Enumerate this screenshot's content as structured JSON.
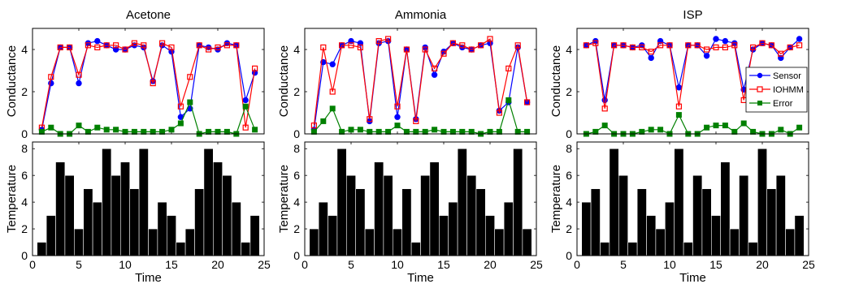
{
  "chart_data": [
    {
      "type": "line",
      "title": "Acetone",
      "xlabel": "",
      "ylabel": "Conductance",
      "xlim": [
        0,
        25
      ],
      "ylim": [
        0,
        5
      ],
      "x_ticks": [
        0,
        5,
        10,
        15,
        20,
        25
      ],
      "y_ticks": [
        0,
        2,
        4
      ],
      "x": [
        1,
        2,
        3,
        4,
        5,
        6,
        7,
        8,
        9,
        10,
        11,
        12,
        13,
        14,
        15,
        16,
        17,
        18,
        19,
        20,
        21,
        22,
        23,
        24
      ],
      "series": [
        {
          "name": "Sensor",
          "color": "#0000ff",
          "marker": "filled-circle",
          "values": [
            0.2,
            2.4,
            4.1,
            4.1,
            2.4,
            4.3,
            4.4,
            4.2,
            4.0,
            4.0,
            4.2,
            4.1,
            2.5,
            4.2,
            3.9,
            0.8,
            1.2,
            4.2,
            4.1,
            4.0,
            4.3,
            4.2,
            1.6,
            2.9
          ]
        },
        {
          "name": "IOHMM",
          "color": "#ff0000",
          "marker": "open-square",
          "values": [
            0.3,
            2.7,
            4.1,
            4.1,
            2.8,
            4.2,
            4.1,
            4.2,
            4.2,
            4.0,
            4.3,
            4.2,
            2.4,
            4.3,
            4.1,
            1.3,
            2.7,
            4.2,
            4.0,
            4.1,
            4.2,
            4.2,
            0.3,
            3.1
          ]
        },
        {
          "name": "Error",
          "color": "#008000",
          "marker": "filled-square",
          "values": [
            0.1,
            0.3,
            0.0,
            0.0,
            0.4,
            0.1,
            0.3,
            0.2,
            0.2,
            0.1,
            0.1,
            0.1,
            0.1,
            0.1,
            0.2,
            0.5,
            1.5,
            0.0,
            0.1,
            0.1,
            0.1,
            0.0,
            1.3,
            0.2
          ]
        }
      ]
    },
    {
      "type": "line",
      "title": "Ammonia",
      "xlabel": "",
      "ylabel": "Conductance",
      "xlim": [
        0,
        25
      ],
      "ylim": [
        0,
        5
      ],
      "x_ticks": [
        0,
        5,
        10,
        15,
        20,
        25
      ],
      "y_ticks": [
        0,
        2,
        4
      ],
      "x": [
        1,
        2,
        3,
        4,
        5,
        6,
        7,
        8,
        9,
        10,
        11,
        12,
        13,
        14,
        15,
        16,
        17,
        18,
        19,
        20,
        21,
        22,
        23,
        24
      ],
      "series": [
        {
          "name": "Sensor",
          "color": "#0000ff",
          "marker": "filled-circle",
          "values": [
            0.2,
            3.4,
            3.3,
            4.2,
            4.4,
            4.3,
            0.6,
            4.3,
            4.4,
            0.8,
            4.0,
            0.7,
            4.1,
            2.8,
            3.9,
            4.3,
            4.1,
            4.0,
            4.2,
            4.3,
            1.1,
            1.5,
            4.1,
            1.5
          ]
        },
        {
          "name": "IOHMM",
          "color": "#ff0000",
          "marker": "open-square",
          "values": [
            0.4,
            4.1,
            2.0,
            4.2,
            4.2,
            4.1,
            0.7,
            4.4,
            4.5,
            1.3,
            4.0,
            0.6,
            4.0,
            3.1,
            3.8,
            4.3,
            4.2,
            4.0,
            4.2,
            4.5,
            1.0,
            3.1,
            4.2,
            1.5
          ]
        },
        {
          "name": "Error",
          "color": "#008000",
          "marker": "filled-square",
          "values": [
            0.1,
            0.6,
            1.2,
            0.1,
            0.2,
            0.2,
            0.1,
            0.1,
            0.1,
            0.4,
            0.1,
            0.1,
            0.1,
            0.2,
            0.1,
            0.1,
            0.1,
            0.1,
            0.0,
            0.1,
            0.1,
            1.6,
            0.1,
            0.1
          ]
        }
      ]
    },
    {
      "type": "line",
      "title": "ISP",
      "xlabel": "",
      "ylabel": "Conductance",
      "xlim": [
        0,
        25
      ],
      "ylim": [
        0,
        5
      ],
      "x_ticks": [
        0,
        5,
        10,
        15,
        20,
        25
      ],
      "y_ticks": [
        0,
        2,
        4
      ],
      "legend": {
        "placement": "right",
        "entries": [
          "Sensor",
          "IOHMM",
          "Error"
        ]
      },
      "x": [
        1,
        2,
        3,
        4,
        5,
        6,
        7,
        8,
        9,
        10,
        11,
        12,
        13,
        14,
        15,
        16,
        17,
        18,
        19,
        20,
        21,
        22,
        23,
        24
      ],
      "series": [
        {
          "name": "Sensor",
          "color": "#0000ff",
          "marker": "filled-circle",
          "values": [
            4.2,
            4.4,
            1.6,
            4.2,
            4.2,
            4.1,
            4.2,
            3.6,
            4.4,
            4.2,
            2.2,
            4.2,
            4.2,
            3.7,
            4.5,
            4.4,
            4.3,
            2.1,
            4.0,
            4.3,
            4.2,
            3.6,
            4.1,
            4.5
          ]
        },
        {
          "name": "IOHMM",
          "color": "#ff0000",
          "marker": "open-square",
          "values": [
            4.2,
            4.3,
            1.2,
            4.2,
            4.2,
            4.1,
            4.1,
            3.9,
            4.2,
            4.2,
            1.3,
            4.2,
            4.2,
            4.0,
            4.1,
            4.1,
            4.2,
            1.6,
            4.1,
            4.3,
            4.2,
            3.8,
            4.1,
            4.2
          ]
        },
        {
          "name": "Error",
          "color": "#008000",
          "marker": "filled-square",
          "values": [
            0.0,
            0.1,
            0.4,
            0.0,
            0.0,
            0.0,
            0.1,
            0.2,
            0.2,
            0.0,
            0.9,
            0.0,
            0.0,
            0.3,
            0.4,
            0.4,
            0.1,
            0.5,
            0.1,
            0.0,
            0.0,
            0.2,
            0.0,
            0.3
          ]
        }
      ]
    },
    {
      "type": "bar",
      "title": "",
      "xlabel": "Time",
      "ylabel": "Temperature",
      "xlim": [
        0,
        25
      ],
      "ylim": [
        0,
        8.5
      ],
      "x_ticks": [
        0,
        5,
        10,
        15,
        20,
        25
      ],
      "y_ticks": [
        0,
        2,
        4,
        6,
        8
      ],
      "color": "#000000",
      "categories": [
        1,
        2,
        3,
        4,
        5,
        6,
        7,
        8,
        9,
        10,
        11,
        12,
        13,
        14,
        15,
        16,
        17,
        18,
        19,
        20,
        21,
        22,
        23,
        24
      ],
      "values": [
        1,
        3,
        7,
        6,
        2,
        5,
        4,
        8,
        6,
        7,
        5,
        8,
        2,
        4,
        3,
        1,
        2,
        5,
        8,
        7,
        6,
        4,
        1,
        3
      ]
    },
    {
      "type": "bar",
      "title": "",
      "xlabel": "Time",
      "ylabel": "Temperature",
      "xlim": [
        0,
        25
      ],
      "ylim": [
        0,
        8.5
      ],
      "x_ticks": [
        0,
        5,
        10,
        15,
        20,
        25
      ],
      "y_ticks": [
        0,
        2,
        4,
        6,
        8
      ],
      "color": "#000000",
      "categories": [
        1,
        2,
        3,
        4,
        5,
        6,
        7,
        8,
        9,
        10,
        11,
        12,
        13,
        14,
        15,
        16,
        17,
        18,
        19,
        20,
        21,
        22,
        23,
        24
      ],
      "values": [
        2,
        4,
        3,
        8,
        6,
        5,
        2,
        7,
        6,
        2,
        5,
        1,
        6,
        7,
        3,
        4,
        8,
        6,
        5,
        3,
        2,
        4,
        8,
        2
      ]
    },
    {
      "type": "bar",
      "title": "",
      "xlabel": "Time",
      "ylabel": "Temperature",
      "xlim": [
        0,
        25
      ],
      "ylim": [
        0,
        8.5
      ],
      "x_ticks": [
        0,
        5,
        10,
        15,
        20,
        25
      ],
      "y_ticks": [
        0,
        2,
        4,
        6,
        8
      ],
      "color": "#000000",
      "categories": [
        1,
        2,
        3,
        4,
        5,
        6,
        7,
        8,
        9,
        10,
        11,
        12,
        13,
        14,
        15,
        16,
        17,
        18,
        19,
        20,
        21,
        22,
        23,
        24
      ],
      "values": [
        4,
        5,
        1,
        8,
        6,
        1,
        5,
        3,
        2,
        4,
        8,
        1,
        6,
        5,
        3,
        7,
        2,
        6,
        1,
        8,
        5,
        6,
        2,
        3
      ]
    }
  ]
}
